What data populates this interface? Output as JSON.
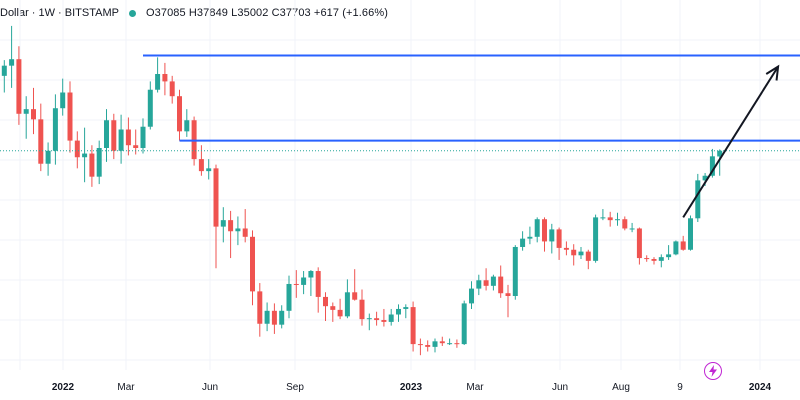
{
  "header": {
    "symbol_title": "Dollar · 1W · BITSTAMP",
    "ohlc_text": "O37085 H37849 L35002 C37703 +617 (+1.66%)",
    "status_color": "#26a69a"
  },
  "colors": {
    "up": "#26a69a",
    "down": "#ef5350",
    "level": "#2962ff",
    "arrow": "#131722",
    "grid": "#f0f3fa"
  },
  "x_axis": {
    "ticks": [
      {
        "label": "2022",
        "bold": true
      },
      {
        "label": "Mar",
        "bold": false
      },
      {
        "label": "Jun",
        "bold": false
      },
      {
        "label": "Sep",
        "bold": false
      },
      {
        "label": "2023",
        "bold": true
      },
      {
        "label": "Mar",
        "bold": false
      },
      {
        "label": "Jun",
        "bold": false
      },
      {
        "label": "Aug",
        "bold": false
      },
      {
        "label": "9",
        "bold": false
      },
      {
        "label": "2024",
        "bold": true
      }
    ]
  },
  "chart_data": {
    "type": "candlestick",
    "symbol": "BITSTAMP",
    "interval": "1W",
    "last_bar": {
      "open": 37085,
      "high": 37849,
      "low": 35002,
      "close": 37703,
      "change": 617,
      "change_pct": 1.66
    },
    "ylim": [
      14000,
      54000
    ],
    "horizontal_levels": [
      48000,
      38800
    ],
    "arrow": {
      "from_index": 93,
      "from_price": 30500,
      "to_index": 106,
      "to_price": 46800
    },
    "candles": [
      [
        45800,
        47500,
        44000,
        46900
      ],
      [
        46900,
        51200,
        44500,
        47600
      ],
      [
        47600,
        49000,
        40500,
        41700
      ],
      [
        41700,
        43600,
        39000,
        42200
      ],
      [
        42200,
        44500,
        39500,
        41100
      ],
      [
        41100,
        42800,
        35500,
        36300
      ],
      [
        36300,
        38600,
        35000,
        37700
      ],
      [
        37700,
        43800,
        36200,
        42300
      ],
      [
        42300,
        45500,
        41500,
        44000
      ],
      [
        44000,
        45200,
        37500,
        38800
      ],
      [
        38800,
        39800,
        35800,
        37000
      ],
      [
        37000,
        40200,
        34300,
        37400
      ],
      [
        37400,
        38300,
        33800,
        34900
      ],
      [
        34900,
        38800,
        34100,
        38000
      ],
      [
        38000,
        42200,
        36500,
        41000
      ],
      [
        41000,
        41700,
        36800,
        37700
      ],
      [
        37700,
        41600,
        36300,
        40000
      ],
      [
        40000,
        41300,
        37200,
        38300
      ],
      [
        38300,
        40000,
        37300,
        38000
      ],
      [
        38000,
        41200,
        37400,
        40300
      ],
      [
        40300,
        45200,
        40000,
        44300
      ],
      [
        44300,
        47800,
        44000,
        46000
      ],
      [
        46000,
        47200,
        43700,
        45200
      ],
      [
        45200,
        45800,
        42800,
        43600
      ],
      [
        43600,
        44300,
        38800,
        39800
      ],
      [
        39800,
        42200,
        39200,
        41000
      ],
      [
        41000,
        41400,
        36100,
        36800
      ],
      [
        36800,
        38300,
        35000,
        35500
      ],
      [
        35500,
        36800,
        34600,
        35800
      ],
      [
        35800,
        36200,
        25000,
        29500
      ],
      [
        29500,
        31600,
        27800,
        30200
      ],
      [
        30200,
        31200,
        26100,
        29000
      ],
      [
        29000,
        30600,
        27500,
        29300
      ],
      [
        29300,
        31400,
        27800,
        28400
      ],
      [
        28400,
        29100,
        21000,
        22500
      ],
      [
        22500,
        23400,
        17600,
        19000
      ],
      [
        19000,
        21300,
        18200,
        20400
      ],
      [
        20400,
        21200,
        17900,
        18900
      ],
      [
        18900,
        21000,
        18500,
        20400
      ],
      [
        20400,
        24200,
        19600,
        23300
      ],
      [
        23300,
        24800,
        21800,
        23200
      ],
      [
        23200,
        24700,
        22200,
        24000
      ],
      [
        24000,
        24800,
        22000,
        24700
      ],
      [
        24700,
        25100,
        20200,
        21900
      ],
      [
        21900,
        22400,
        19300,
        20900
      ],
      [
        20900,
        21300,
        19200,
        20500
      ],
      [
        20500,
        21700,
        19500,
        19800
      ],
      [
        19800,
        23800,
        19600,
        22400
      ],
      [
        22400,
        24900,
        21500,
        21600
      ],
      [
        21600,
        22700,
        18800,
        19500
      ],
      [
        19500,
        20100,
        18300,
        19600
      ],
      [
        19600,
        20300,
        18800,
        19400
      ],
      [
        19400,
        20600,
        18700,
        19200
      ],
      [
        19200,
        20600,
        18800,
        20000
      ],
      [
        20000,
        21100,
        19200,
        20600
      ],
      [
        20600,
        21100,
        19600,
        20800
      ],
      [
        20800,
        21400,
        16000,
        16800
      ],
      [
        16800,
        17400,
        15600,
        16700
      ],
      [
        16700,
        17200,
        16000,
        16500
      ],
      [
        16500,
        17400,
        15900,
        17100
      ],
      [
        17100,
        17600,
        16600,
        16900
      ],
      [
        16900,
        17400,
        16700,
        16900
      ],
      [
        16900,
        17300,
        16400,
        16800
      ],
      [
        16800,
        21500,
        16700,
        21200
      ],
      [
        21200,
        23600,
        20600,
        22800
      ],
      [
        22800,
        24300,
        22100,
        23700
      ],
      [
        23700,
        25000,
        22600,
        23100
      ],
      [
        23100,
        24300,
        22600,
        24100
      ],
      [
        24100,
        25300,
        21800,
        22300
      ],
      [
        22300,
        23200,
        19700,
        22000
      ],
      [
        22000,
        27500,
        21600,
        27300
      ],
      [
        27300,
        29000,
        26900,
        28200
      ],
      [
        28200,
        29500,
        27600,
        28400
      ],
      [
        28400,
        30500,
        27800,
        30300
      ],
      [
        30300,
        30500,
        26800,
        27900
      ],
      [
        27900,
        29800,
        26600,
        29200
      ],
      [
        29200,
        29400,
        25900,
        27200
      ],
      [
        27200,
        27900,
        26400,
        27000
      ],
      [
        27000,
        27600,
        25300,
        26400
      ],
      [
        26400,
        27300,
        26000,
        26800
      ],
      [
        26800,
        27000,
        24900,
        25800
      ],
      [
        25800,
        30800,
        25600,
        30500
      ],
      [
        30500,
        31400,
        30200,
        30500
      ],
      [
        30500,
        31100,
        29500,
        30200
      ],
      [
        30200,
        31000,
        29600,
        30300
      ],
      [
        30300,
        30600,
        29100,
        29300
      ],
      [
        29300,
        29900,
        28900,
        29300
      ],
      [
        29300,
        29400,
        25400,
        26100
      ],
      [
        26100,
        26400,
        25700,
        26000
      ],
      [
        26000,
        26200,
        25400,
        25800
      ],
      [
        25800,
        26500,
        25100,
        26200
      ],
      [
        26200,
        27500,
        25900,
        26500
      ],
      [
        26500,
        28000,
        26400,
        27900
      ],
      [
        27900,
        28500,
        26900,
        27000
      ],
      [
        27000,
        30700,
        26900,
        30400
      ],
      [
        30400,
        35200,
        30000,
        34500
      ],
      [
        34500,
        35300,
        33900,
        35000
      ],
      [
        35000,
        37900,
        34800,
        37100
      ],
      [
        37085,
        37849,
        35002,
        37703
      ]
    ]
  }
}
